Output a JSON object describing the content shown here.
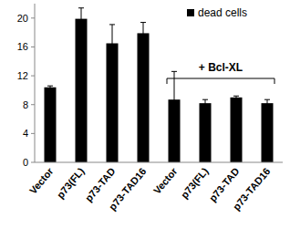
{
  "chart_data": {
    "type": "bar",
    "categories": [
      "Vector",
      "p73(FL)",
      "p73-TAD",
      "p73-TAD16",
      "Vector",
      "p73(FL)",
      "p73-TAD",
      "p73-TAD16"
    ],
    "series": [
      {
        "name": "dead cells",
        "color": "#000000",
        "values": [
          10.4,
          19.9,
          16.5,
          17.9,
          8.7,
          8.2,
          9.0,
          8.2
        ],
        "errors": [
          0.2,
          1.5,
          2.6,
          1.5,
          3.9,
          0.5,
          0.2,
          0.5
        ]
      }
    ],
    "ylim": [
      0,
      22
    ],
    "yticks": [
      0,
      4,
      8,
      12,
      16,
      20
    ],
    "legend": "upper right",
    "annotation": "+ Bcl-XL",
    "grid": false
  }
}
